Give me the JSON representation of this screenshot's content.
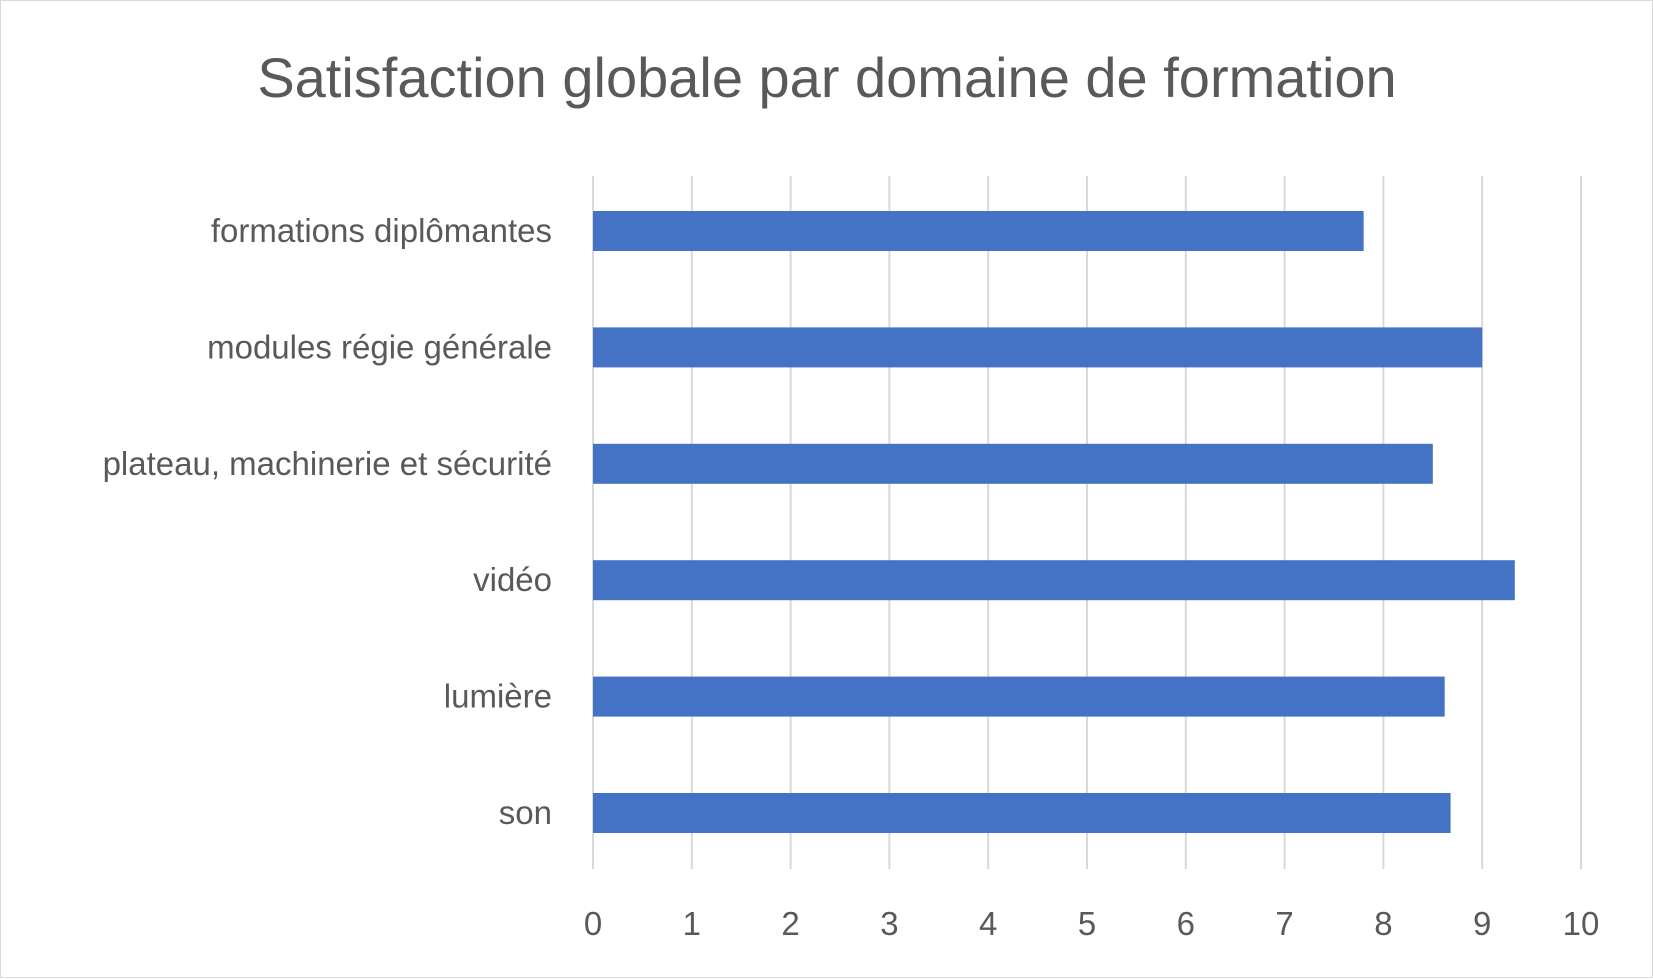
{
  "chart_data": {
    "type": "bar",
    "orientation": "horizontal",
    "title": "Satisfaction globale par domaine de formation",
    "categories": [
      "formations diplômantes",
      "modules régie générale",
      "plateau, machinerie et sécurité",
      "vidéo",
      "lumière",
      "son"
    ],
    "values": [
      7.8,
      9.0,
      8.5,
      9.33,
      8.62,
      8.68
    ],
    "xlim": [
      0,
      10
    ],
    "ticks": [
      "0",
      "1",
      "2",
      "3",
      "4",
      "5",
      "6",
      "7",
      "8",
      "9",
      "10"
    ],
    "grid": "vertical",
    "legend": "none",
    "bar_color": "#4472C4"
  }
}
